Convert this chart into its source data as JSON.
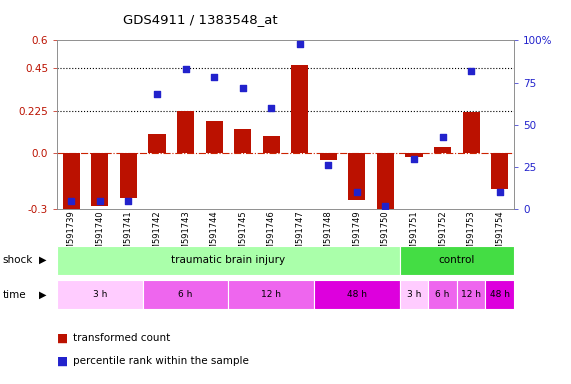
{
  "title": "GDS4911 / 1383548_at",
  "samples": [
    "GSM591739",
    "GSM591740",
    "GSM591741",
    "GSM591742",
    "GSM591743",
    "GSM591744",
    "GSM591745",
    "GSM591746",
    "GSM591747",
    "GSM591748",
    "GSM591749",
    "GSM591750",
    "GSM591751",
    "GSM591752",
    "GSM591753",
    "GSM591754"
  ],
  "bar_values": [
    -0.3,
    -0.28,
    -0.24,
    0.1,
    0.225,
    0.17,
    0.13,
    0.09,
    0.47,
    -0.04,
    -0.25,
    -0.32,
    -0.02,
    0.03,
    0.22,
    -0.19
  ],
  "dot_values": [
    5,
    5,
    5,
    68,
    83,
    78,
    72,
    60,
    98,
    26,
    10,
    2,
    30,
    43,
    82,
    10
  ],
  "ylim_left": [
    -0.3,
    0.6
  ],
  "ylim_right": [
    0,
    100
  ],
  "yticks_left": [
    -0.3,
    0.0,
    0.225,
    0.45,
    0.6
  ],
  "yticks_right": [
    0,
    25,
    50,
    75,
    100
  ],
  "hlines": [
    0.225,
    0.45
  ],
  "bar_color": "#BB1100",
  "dot_color": "#2222CC",
  "zero_line_color": "#CC2200",
  "shock_groups": [
    {
      "label": "traumatic brain injury",
      "start": 0,
      "end": 12,
      "color": "#AAFFAA"
    },
    {
      "label": "control",
      "start": 12,
      "end": 16,
      "color": "#44DD44"
    }
  ],
  "time_groups": [
    {
      "label": "3 h",
      "start": 0,
      "end": 3,
      "color": "#FFCCFF"
    },
    {
      "label": "6 h",
      "start": 3,
      "end": 6,
      "color": "#EE66EE"
    },
    {
      "label": "12 h",
      "start": 6,
      "end": 9,
      "color": "#EE66EE"
    },
    {
      "label": "48 h",
      "start": 9,
      "end": 12,
      "color": "#DD00DD"
    },
    {
      "label": "3 h",
      "start": 12,
      "end": 13,
      "color": "#FFCCFF"
    },
    {
      "label": "6 h",
      "start": 13,
      "end": 14,
      "color": "#EE66EE"
    },
    {
      "label": "12 h",
      "start": 14,
      "end": 15,
      "color": "#EE66EE"
    },
    {
      "label": "48 h",
      "start": 15,
      "end": 16,
      "color": "#DD00DD"
    }
  ],
  "shock_label": "shock",
  "time_label": "time",
  "legend_bar": "transformed count",
  "legend_dot": "percentile rank within the sample"
}
